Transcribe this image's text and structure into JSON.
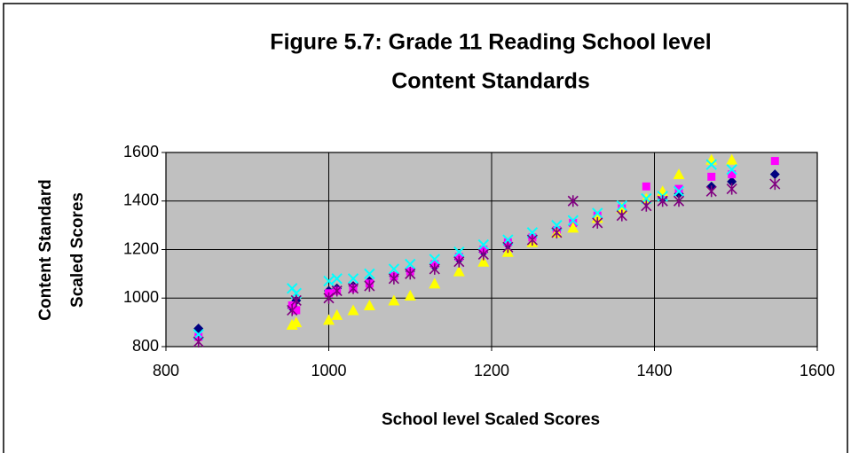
{
  "chart_data": {
    "type": "scatter",
    "title": [
      "Figure 5.7: Grade 11 Reading School level",
      "Content Standards"
    ],
    "x_label": "School level Scaled Scores",
    "y_label": [
      "Content Standard",
      "Scaled Scores"
    ],
    "x": [
      840,
      955,
      960,
      1000,
      1010,
      1030,
      1050,
      1080,
      1100,
      1130,
      1160,
      1190,
      1220,
      1250,
      1280,
      1300,
      1330,
      1360,
      1390,
      1410,
      1430,
      1470,
      1495,
      1548
    ],
    "series": [
      {
        "color": "#000080",
        "marker": "diamond",
        "values": [
          875,
          960,
          990,
          1030,
          1040,
          1050,
          1070,
          1090,
          1110,
          1130,
          1160,
          1190,
          1220,
          1250,
          1280,
          1300,
          1330,
          1360,
          1400,
          1410,
          1430,
          1460,
          1480,
          1510
        ]
      },
      {
        "color": "#ff00ff",
        "marker": "square",
        "values": [
          840,
          970,
          950,
          1020,
          1030,
          1040,
          1060,
          1090,
          1110,
          1140,
          1170,
          1200,
          1230,
          1250,
          1280,
          1310,
          1340,
          1370,
          1460,
          1420,
          1450,
          1500,
          1510,
          1565
        ]
      },
      {
        "color": "#ffff00",
        "marker": "triangle",
        "values": [
          null,
          890,
          900,
          910,
          930,
          950,
          970,
          990,
          1010,
          1060,
          1110,
          1150,
          1190,
          1230,
          1270,
          1290,
          1330,
          1370,
          1410,
          1440,
          1510,
          1570,
          1570,
          null
        ]
      },
      {
        "color": "#00ffff",
        "marker": "x",
        "values": [
          850,
          1040,
          1020,
          1070,
          1080,
          1080,
          1100,
          1120,
          1140,
          1160,
          1190,
          1220,
          1240,
          1270,
          1300,
          1320,
          1350,
          1380,
          1410,
          1420,
          1440,
          1550,
          1530,
          null
        ]
      },
      {
        "color": "#800080",
        "marker": "asterisk",
        "values": [
          820,
          950,
          990,
          1000,
          1030,
          1040,
          1050,
          1080,
          1100,
          1120,
          1150,
          1180,
          1210,
          1240,
          1270,
          1400,
          1310,
          1340,
          1380,
          1400,
          1400,
          1440,
          1450,
          1470
        ]
      }
    ],
    "xlim": [
      800,
      1600
    ],
    "xticks": [
      800,
      1000,
      1200,
      1400,
      1600
    ],
    "ylim": [
      800,
      1600
    ],
    "yticks": [
      800,
      1000,
      1200,
      1400,
      1600
    ],
    "grid": true,
    "plot_background": "#c0c0c0"
  }
}
